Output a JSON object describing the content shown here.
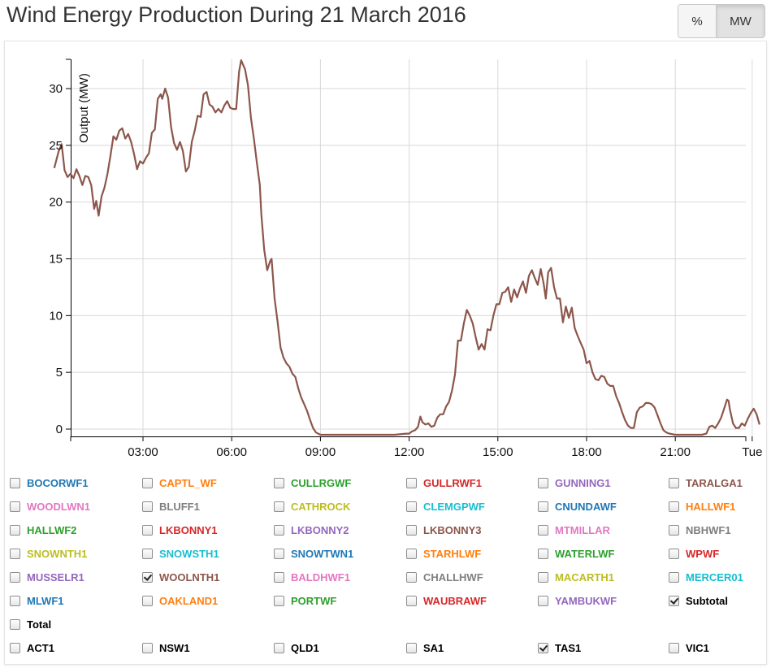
{
  "page_title": "Wind Energy Production During 21 March 2016",
  "unit_toggle": {
    "options": [
      "%",
      "MW"
    ],
    "selected": "MW"
  },
  "legend": {
    "rows": [
      [
        {
          "name": "BOCORWF1",
          "color": "#1f77b4",
          "checked": false
        },
        {
          "name": "CAPTL_WF",
          "color": "#ff7f0e",
          "checked": false
        },
        {
          "name": "CULLRGWF",
          "color": "#2ca02c",
          "checked": false
        },
        {
          "name": "GULLRWF1",
          "color": "#d62728",
          "checked": false
        },
        {
          "name": "GUNNING1",
          "color": "#9467bd",
          "checked": false
        },
        {
          "name": "TARALGA1",
          "color": "#8c564b",
          "checked": false
        }
      ],
      [
        {
          "name": "WOODLWN1",
          "color": "#e377c2",
          "checked": false
        },
        {
          "name": "BLUFF1",
          "color": "#7f7f7f",
          "checked": false
        },
        {
          "name": "CATHROCK",
          "color": "#bcbd22",
          "checked": false
        },
        {
          "name": "CLEMGPWF",
          "color": "#17becf",
          "checked": false
        },
        {
          "name": "CNUNDAWF",
          "color": "#1f77b4",
          "checked": false
        },
        {
          "name": "HALLWF1",
          "color": "#ff7f0e",
          "checked": false
        }
      ],
      [
        {
          "name": "HALLWF2",
          "color": "#2ca02c",
          "checked": false
        },
        {
          "name": "LKBONNY1",
          "color": "#d62728",
          "checked": false
        },
        {
          "name": "LKBONNY2",
          "color": "#9467bd",
          "checked": false
        },
        {
          "name": "LKBONNY3",
          "color": "#8c564b",
          "checked": false
        },
        {
          "name": "MTMILLAR",
          "color": "#e377c2",
          "checked": false
        },
        {
          "name": "NBHWF1",
          "color": "#7f7f7f",
          "checked": false
        }
      ],
      [
        {
          "name": "SNOWNTH1",
          "color": "#bcbd22",
          "checked": false
        },
        {
          "name": "SNOWSTH1",
          "color": "#17becf",
          "checked": false
        },
        {
          "name": "SNOWTWN1",
          "color": "#1f77b4",
          "checked": false
        },
        {
          "name": "STARHLWF",
          "color": "#ff7f0e",
          "checked": false
        },
        {
          "name": "WATERLWF",
          "color": "#2ca02c",
          "checked": false
        },
        {
          "name": "WPWF",
          "color": "#d62728",
          "checked": false
        }
      ],
      [
        {
          "name": "MUSSELR1",
          "color": "#9467bd",
          "checked": false
        },
        {
          "name": "WOOLNTH1",
          "color": "#8c564b",
          "checked": true
        },
        {
          "name": "BALDHWF1",
          "color": "#e377c2",
          "checked": false
        },
        {
          "name": "CHALLHWF",
          "color": "#7f7f7f",
          "checked": false
        },
        {
          "name": "MACARTH1",
          "color": "#bcbd22",
          "checked": false
        },
        {
          "name": "MERCER01",
          "color": "#17becf",
          "checked": false
        }
      ],
      [
        {
          "name": "MLWF1",
          "color": "#1f77b4",
          "checked": false
        },
        {
          "name": "OAKLAND1",
          "color": "#ff7f0e",
          "checked": false
        },
        {
          "name": "PORTWF",
          "color": "#2ca02c",
          "checked": false
        },
        {
          "name": "WAUBRAWF",
          "color": "#d62728",
          "checked": false
        },
        {
          "name": "YAMBUKWF",
          "color": "#9467bd",
          "checked": false
        },
        {
          "name": "Subtotal",
          "color": "#000000",
          "checked": true
        }
      ],
      [
        {
          "name": "Total",
          "color": "#000000",
          "checked": false
        }
      ],
      [
        {
          "name": "ACT1",
          "color": "#000000",
          "checked": false
        },
        {
          "name": "NSW1",
          "color": "#000000",
          "checked": false
        },
        {
          "name": "QLD1",
          "color": "#000000",
          "checked": false
        },
        {
          "name": "SA1",
          "color": "#000000",
          "checked": false
        },
        {
          "name": "TAS1",
          "color": "#000000",
          "checked": true
        },
        {
          "name": "VIC1",
          "color": "#000000",
          "checked": false
        }
      ]
    ]
  },
  "chart_data": {
    "type": "line",
    "title": "Wind Energy Production During 21 March 2016",
    "xlabel": "",
    "ylabel": "Output (MW)",
    "x_unit": "hours",
    "xlim": [
      0,
      23.95
    ],
    "ylim": [
      -0.5,
      33
    ],
    "x_ticks": [
      3,
      6,
      9,
      12,
      15,
      18,
      21,
      23.6
    ],
    "x_tick_labels": [
      "03:00",
      "06:00",
      "09:00",
      "12:00",
      "15:00",
      "18:00",
      "21:00",
      "Tue"
    ],
    "y_ticks": [
      0,
      5,
      10,
      15,
      20,
      25,
      30
    ],
    "y_tick_labels": [
      "0",
      "5",
      "10",
      "15",
      "20",
      "25",
      "30"
    ],
    "grid": true,
    "series": [
      {
        "color": "#8c564b",
        "points": [
          [
            0.0,
            23.0
          ],
          [
            0.15,
            24.5
          ],
          [
            0.25,
            25.1
          ],
          [
            0.35,
            22.8
          ],
          [
            0.45,
            22.2
          ],
          [
            0.55,
            22.5
          ],
          [
            0.65,
            22.1
          ],
          [
            0.75,
            22.9
          ],
          [
            0.85,
            22.3
          ],
          [
            0.95,
            21.5
          ],
          [
            1.05,
            22.3
          ],
          [
            1.15,
            22.2
          ],
          [
            1.25,
            21.5
          ],
          [
            1.35,
            19.4
          ],
          [
            1.42,
            20.1
          ],
          [
            1.5,
            18.8
          ],
          [
            1.6,
            20.5
          ],
          [
            1.7,
            21.3
          ],
          [
            1.8,
            22.5
          ],
          [
            1.9,
            24.1
          ],
          [
            2.0,
            25.8
          ],
          [
            2.1,
            25.5
          ],
          [
            2.2,
            26.3
          ],
          [
            2.3,
            26.5
          ],
          [
            2.4,
            25.6
          ],
          [
            2.5,
            26.0
          ],
          [
            2.6,
            25.3
          ],
          [
            2.7,
            24.2
          ],
          [
            2.8,
            22.9
          ],
          [
            2.9,
            23.6
          ],
          [
            3.0,
            23.4
          ],
          [
            3.1,
            23.9
          ],
          [
            3.2,
            24.3
          ],
          [
            3.3,
            26.1
          ],
          [
            3.4,
            26.4
          ],
          [
            3.5,
            29.1
          ],
          [
            3.6,
            29.5
          ],
          [
            3.65,
            29.1
          ],
          [
            3.75,
            30.0
          ],
          [
            3.85,
            29.2
          ],
          [
            3.95,
            26.6
          ],
          [
            4.05,
            25.2
          ],
          [
            4.15,
            24.6
          ],
          [
            4.25,
            25.3
          ],
          [
            4.35,
            24.5
          ],
          [
            4.45,
            22.7
          ],
          [
            4.55,
            23.1
          ],
          [
            4.65,
            25.3
          ],
          [
            4.75,
            26.3
          ],
          [
            4.85,
            27.6
          ],
          [
            4.95,
            27.5
          ],
          [
            5.05,
            29.5
          ],
          [
            5.15,
            29.7
          ],
          [
            5.25,
            28.6
          ],
          [
            5.35,
            28.4
          ],
          [
            5.45,
            27.9
          ],
          [
            5.55,
            28.2
          ],
          [
            5.65,
            27.9
          ],
          [
            5.75,
            28.5
          ],
          [
            5.85,
            28.9
          ],
          [
            5.95,
            28.3
          ],
          [
            6.05,
            28.2
          ],
          [
            6.15,
            28.2
          ],
          [
            6.25,
            31.5
          ],
          [
            6.32,
            32.5
          ],
          [
            6.45,
            31.7
          ],
          [
            6.55,
            30.3
          ],
          [
            6.65,
            27.4
          ],
          [
            6.75,
            25.6
          ],
          [
            6.85,
            23.5
          ],
          [
            6.95,
            21.5
          ],
          [
            7.0,
            19.0
          ],
          [
            7.1,
            15.8
          ],
          [
            7.2,
            14.0
          ],
          [
            7.3,
            14.8
          ],
          [
            7.35,
            15.0
          ],
          [
            7.45,
            11.5
          ],
          [
            7.55,
            9.5
          ],
          [
            7.65,
            7.2
          ],
          [
            7.75,
            6.3
          ],
          [
            7.85,
            5.8
          ],
          [
            7.95,
            5.5
          ],
          [
            8.05,
            4.9
          ],
          [
            8.15,
            4.6
          ],
          [
            8.25,
            3.6
          ],
          [
            8.35,
            2.8
          ],
          [
            8.45,
            2.2
          ],
          [
            8.55,
            1.6
          ],
          [
            8.65,
            0.8
          ],
          [
            8.75,
            0.1
          ],
          [
            8.85,
            -0.3
          ],
          [
            9.0,
            -0.5
          ],
          [
            9.5,
            -0.5
          ],
          [
            10.5,
            -0.5
          ],
          [
            11.5,
            -0.5
          ],
          [
            11.9,
            -0.4
          ],
          [
            12.0,
            -0.4
          ],
          [
            12.1,
            -0.2
          ],
          [
            12.2,
            -0.1
          ],
          [
            12.3,
            0.2
          ],
          [
            12.38,
            1.1
          ],
          [
            12.45,
            0.6
          ],
          [
            12.55,
            0.4
          ],
          [
            12.65,
            0.5
          ],
          [
            12.75,
            0.2
          ],
          [
            12.85,
            0.3
          ],
          [
            12.95,
            1.0
          ],
          [
            13.05,
            1.3
          ],
          [
            13.15,
            1.3
          ],
          [
            13.25,
            2.0
          ],
          [
            13.35,
            2.4
          ],
          [
            13.45,
            3.4
          ],
          [
            13.55,
            4.8
          ],
          [
            13.65,
            7.8
          ],
          [
            13.75,
            7.8
          ],
          [
            13.85,
            9.3
          ],
          [
            13.95,
            10.5
          ],
          [
            14.05,
            10.0
          ],
          [
            14.15,
            9.3
          ],
          [
            14.25,
            8.1
          ],
          [
            14.35,
            7.0
          ],
          [
            14.45,
            7.5
          ],
          [
            14.55,
            7.0
          ],
          [
            14.65,
            8.8
          ],
          [
            14.75,
            8.7
          ],
          [
            14.85,
            10.0
          ],
          [
            14.95,
            11.0
          ],
          [
            15.05,
            11.0
          ],
          [
            15.15,
            12.0
          ],
          [
            15.25,
            12.1
          ],
          [
            15.35,
            12.5
          ],
          [
            15.45,
            11.2
          ],
          [
            15.55,
            12.3
          ],
          [
            15.65,
            11.6
          ],
          [
            15.75,
            12.4
          ],
          [
            15.85,
            13.0
          ],
          [
            15.95,
            12.0
          ],
          [
            16.05,
            13.5
          ],
          [
            16.15,
            14.0
          ],
          [
            16.25,
            13.3
          ],
          [
            16.35,
            12.7
          ],
          [
            16.45,
            14.1
          ],
          [
            16.55,
            12.8
          ],
          [
            16.62,
            11.5
          ],
          [
            16.7,
            13.8
          ],
          [
            16.8,
            14.2
          ],
          [
            16.9,
            12.5
          ],
          [
            17.0,
            11.5
          ],
          [
            17.1,
            11.5
          ],
          [
            17.2,
            9.4
          ],
          [
            17.3,
            10.8
          ],
          [
            17.4,
            9.8
          ],
          [
            17.5,
            10.7
          ],
          [
            17.6,
            8.9
          ],
          [
            17.7,
            8.2
          ],
          [
            17.8,
            7.6
          ],
          [
            17.9,
            7.0
          ],
          [
            18.0,
            5.8
          ],
          [
            18.1,
            6.0
          ],
          [
            18.2,
            5.0
          ],
          [
            18.3,
            4.4
          ],
          [
            18.4,
            4.3
          ],
          [
            18.5,
            4.7
          ],
          [
            18.6,
            4.6
          ],
          [
            18.7,
            4.0
          ],
          [
            18.8,
            3.8
          ],
          [
            18.9,
            3.8
          ],
          [
            19.0,
            2.9
          ],
          [
            19.1,
            2.3
          ],
          [
            19.2,
            1.5
          ],
          [
            19.3,
            0.8
          ],
          [
            19.4,
            0.3
          ],
          [
            19.5,
            0.1
          ],
          [
            19.6,
            0.1
          ],
          [
            19.7,
            1.5
          ],
          [
            19.8,
            1.9
          ],
          [
            19.9,
            2.0
          ],
          [
            20.0,
            2.3
          ],
          [
            20.1,
            2.3
          ],
          [
            20.2,
            2.2
          ],
          [
            20.3,
            1.9
          ],
          [
            20.4,
            1.2
          ],
          [
            20.5,
            0.5
          ],
          [
            20.6,
            -0.1
          ],
          [
            20.7,
            -0.3
          ],
          [
            20.8,
            -0.4
          ],
          [
            21.0,
            -0.5
          ],
          [
            21.5,
            -0.5
          ],
          [
            21.9,
            -0.5
          ],
          [
            22.05,
            -0.4
          ],
          [
            22.15,
            0.2
          ],
          [
            22.25,
            0.3
          ],
          [
            22.35,
            0.1
          ],
          [
            22.45,
            0.5
          ],
          [
            22.55,
            1.0
          ],
          [
            22.65,
            1.8
          ],
          [
            22.75,
            2.6
          ],
          [
            22.8,
            2.5
          ],
          [
            22.85,
            1.7
          ],
          [
            22.95,
            0.5
          ],
          [
            23.05,
            0.1
          ],
          [
            23.15,
            0.1
          ],
          [
            23.25,
            0.5
          ],
          [
            23.35,
            0.3
          ],
          [
            23.45,
            0.9
          ],
          [
            23.55,
            1.4
          ],
          [
            23.65,
            1.8
          ],
          [
            23.75,
            1.3
          ],
          [
            23.85,
            0.4
          ]
        ]
      }
    ]
  }
}
